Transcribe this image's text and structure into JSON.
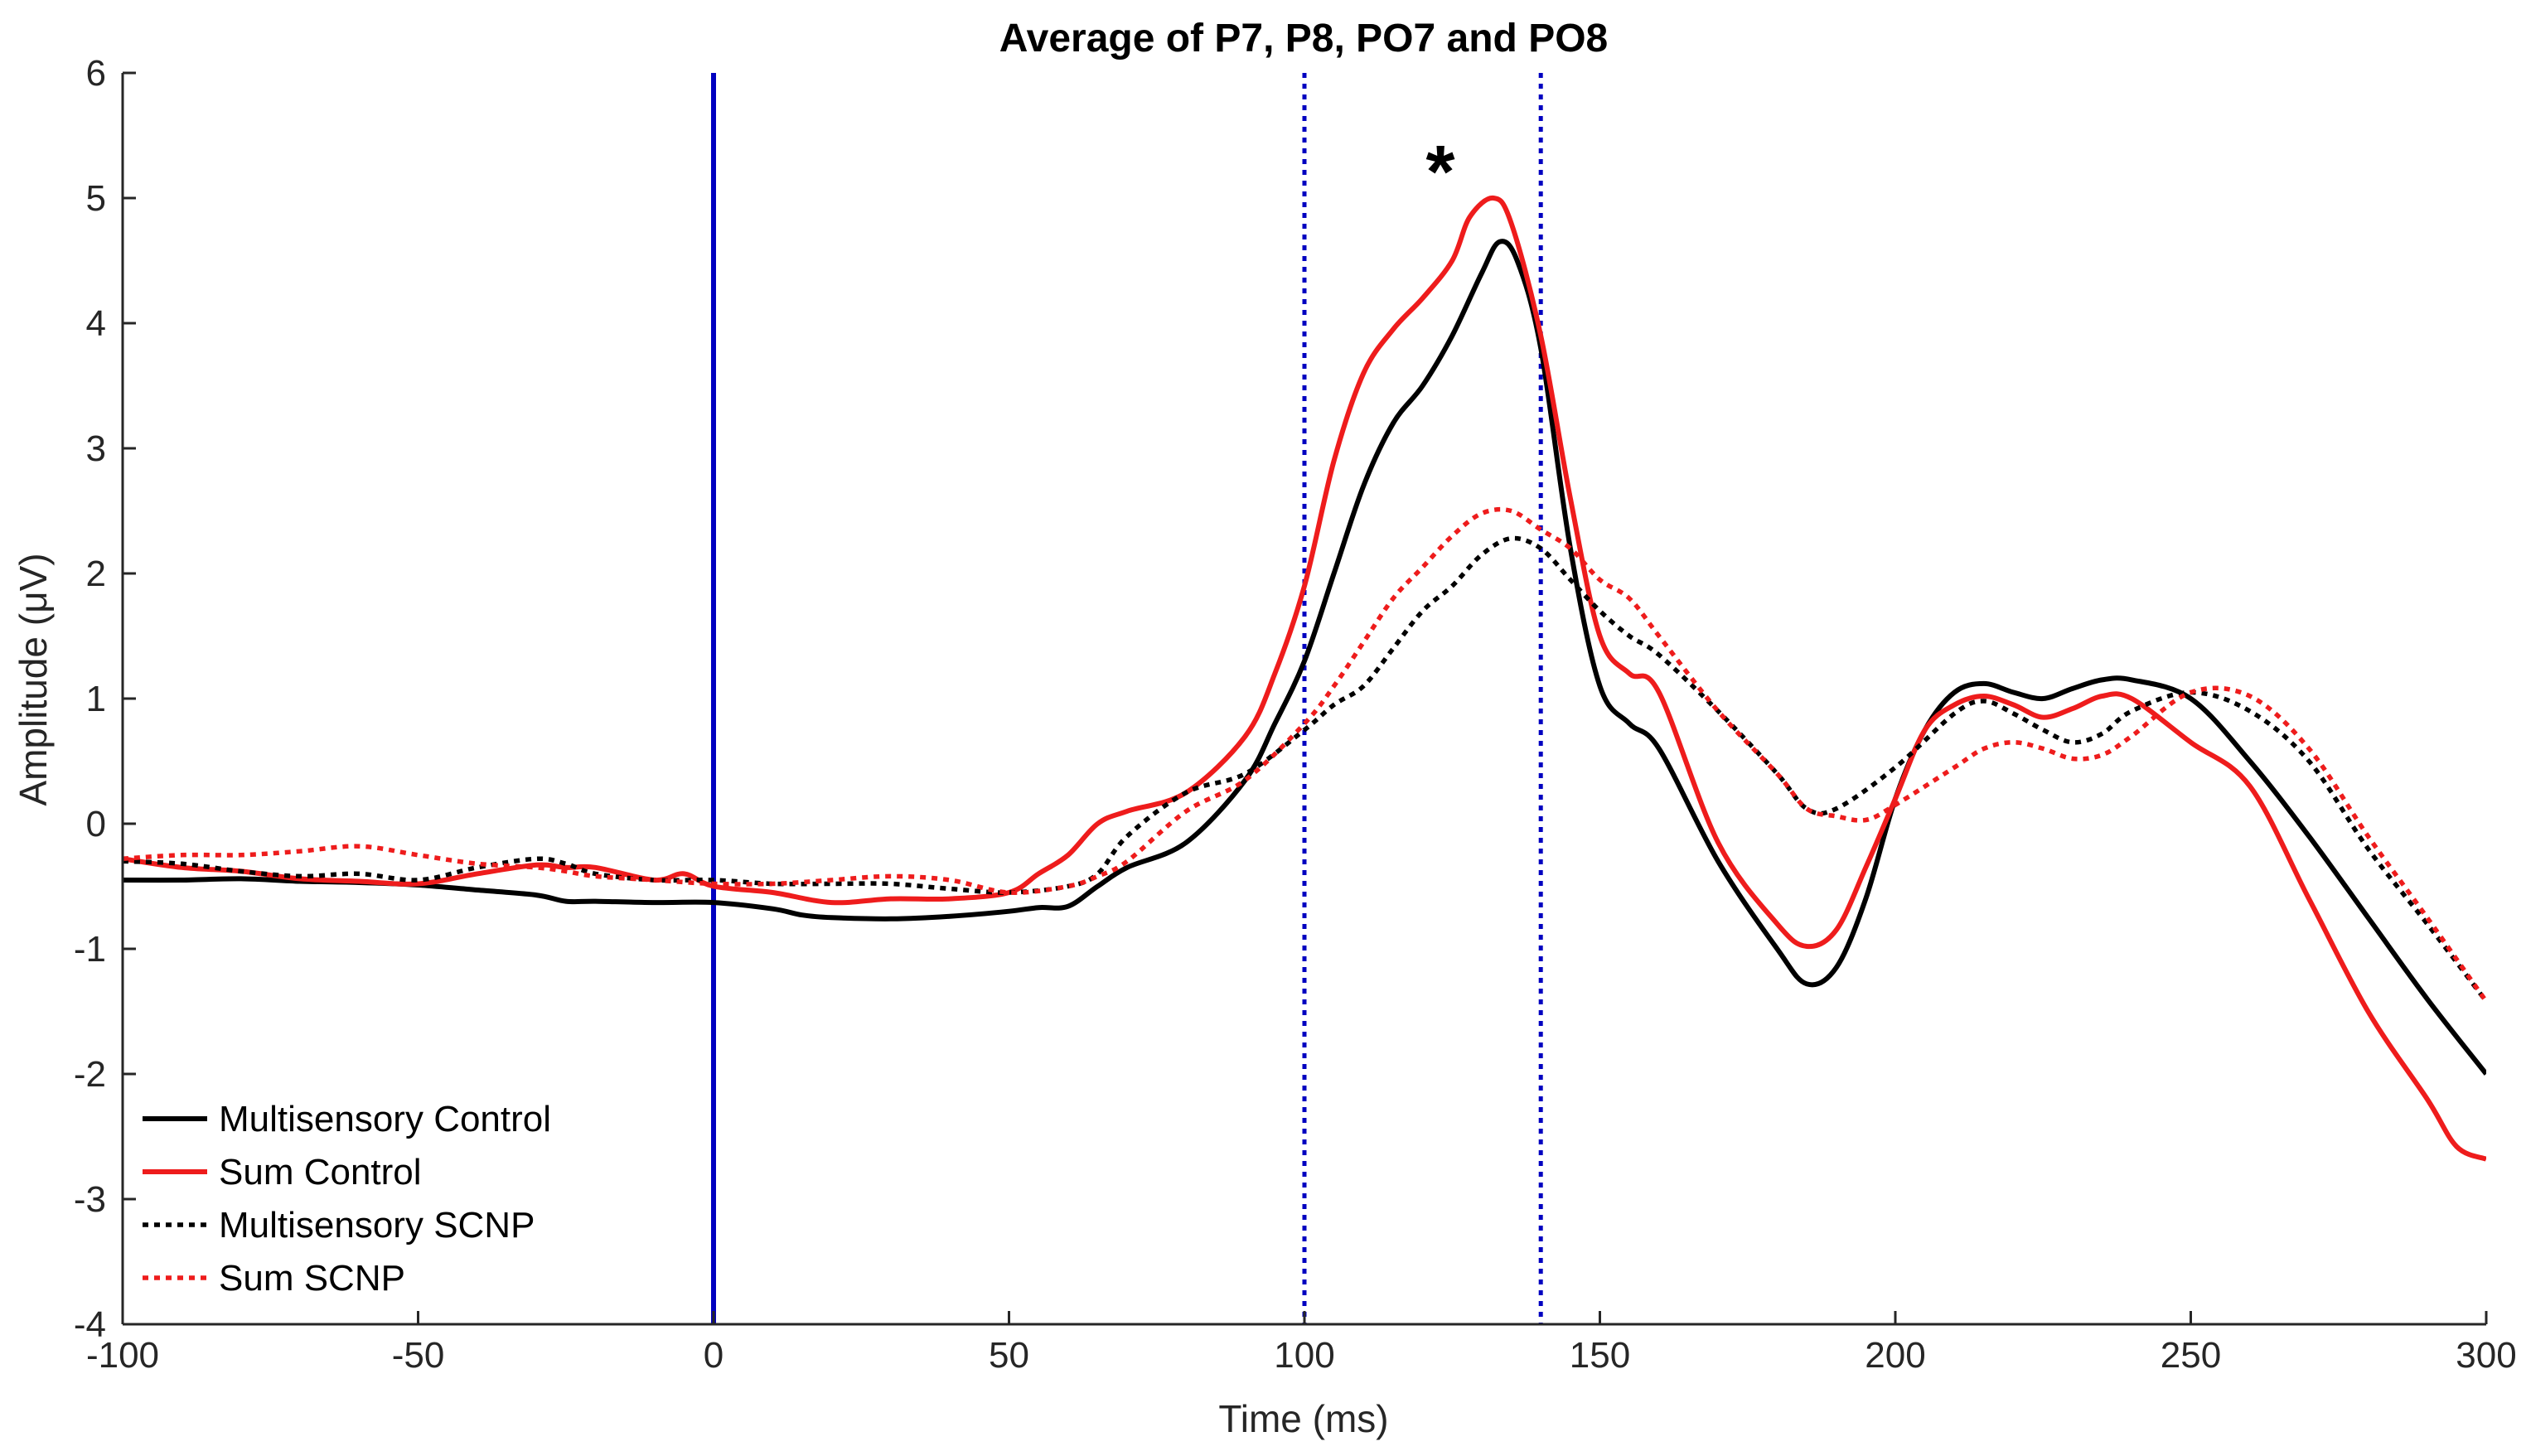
{
  "chart_data": {
    "type": "line",
    "title": "Average of P7, P8, PO7 and PO8",
    "xlabel": "Time (ms)",
    "ylabel": "Amplitude (μV)",
    "xlim": [
      -100,
      300
    ],
    "ylim": [
      -4,
      6
    ],
    "xticks": [
      -100,
      -50,
      0,
      50,
      100,
      150,
      200,
      250,
      300
    ],
    "yticks": [
      -4,
      -3,
      -2,
      -1,
      0,
      1,
      2,
      3,
      4,
      5,
      6
    ],
    "legend_position": "bottom-left",
    "annotations": [
      {
        "text": "*",
        "x": 123,
        "y": 5.35
      }
    ],
    "vlines": [
      {
        "name": "stimulus-onset",
        "x": 0,
        "color": "#0000c0",
        "style": "solid"
      },
      {
        "name": "window-start",
        "x": 100,
        "color": "#0000c0",
        "style": "dotted"
      },
      {
        "name": "window-end",
        "x": 140,
        "color": "#0000c0",
        "style": "dotted"
      }
    ],
    "series": [
      {
        "name": "Multisensory Control",
        "color": "#000000",
        "style": "solid",
        "x": [
          -100,
          -90,
          -80,
          -70,
          -60,
          -50,
          -40,
          -30,
          -25,
          -20,
          -10,
          0,
          10,
          15,
          20,
          30,
          40,
          50,
          55,
          60,
          65,
          70,
          80,
          90,
          95,
          100,
          105,
          110,
          115,
          120,
          125,
          130,
          133,
          136,
          140,
          145,
          150,
          155,
          160,
          170,
          180,
          185,
          190,
          195,
          200,
          205,
          210,
          215,
          220,
          225,
          230,
          235,
          240,
          250,
          260,
          270,
          280,
          290,
          300
        ],
        "y": [
          -0.45,
          -0.45,
          -0.44,
          -0.46,
          -0.47,
          -0.49,
          -0.53,
          -0.57,
          -0.62,
          -0.62,
          -0.63,
          -0.63,
          -0.68,
          -0.73,
          -0.75,
          -0.76,
          -0.74,
          -0.7,
          -0.67,
          -0.66,
          -0.5,
          -0.35,
          -0.15,
          0.35,
          0.8,
          1.3,
          2.0,
          2.7,
          3.2,
          3.5,
          3.9,
          4.4,
          4.65,
          4.5,
          3.8,
          2.2,
          1.1,
          0.8,
          0.6,
          -0.3,
          -1.0,
          -1.28,
          -1.15,
          -0.6,
          0.2,
          0.75,
          1.05,
          1.12,
          1.05,
          1.0,
          1.08,
          1.15,
          1.15,
          1.0,
          0.5,
          -0.1,
          -0.75,
          -1.4,
          -2.0
        ]
      },
      {
        "name": "Sum Control",
        "color": "#ee1c1c",
        "style": "solid",
        "x": [
          -100,
          -90,
          -80,
          -70,
          -60,
          -50,
          -40,
          -30,
          -25,
          -20,
          -10,
          -5,
          0,
          10,
          20,
          30,
          40,
          50,
          55,
          60,
          65,
          70,
          80,
          90,
          95,
          100,
          105,
          110,
          115,
          120,
          125,
          128,
          132,
          135,
          140,
          145,
          150,
          155,
          160,
          170,
          180,
          185,
          190,
          195,
          200,
          205,
          210,
          215,
          220,
          225,
          230,
          235,
          240,
          250,
          260,
          270,
          280,
          290,
          295,
          300
        ],
        "y": [
          -0.28,
          -0.35,
          -0.38,
          -0.44,
          -0.46,
          -0.48,
          -0.4,
          -0.33,
          -0.35,
          -0.35,
          -0.45,
          -0.4,
          -0.5,
          -0.55,
          -0.63,
          -0.6,
          -0.6,
          -0.55,
          -0.4,
          -0.25,
          0.0,
          0.1,
          0.25,
          0.7,
          1.2,
          1.9,
          2.9,
          3.6,
          3.95,
          4.2,
          4.5,
          4.85,
          5.0,
          4.8,
          3.9,
          2.6,
          1.5,
          1.2,
          1.05,
          -0.15,
          -0.8,
          -0.98,
          -0.85,
          -0.35,
          0.2,
          0.75,
          0.95,
          1.02,
          0.95,
          0.85,
          0.92,
          1.02,
          1.0,
          0.65,
          0.3,
          -0.6,
          -1.5,
          -2.2,
          -2.58,
          -2.68
        ]
      },
      {
        "name": "Multisensory SCNP",
        "color": "#000000",
        "style": "dotted",
        "x": [
          -100,
          -90,
          -80,
          -70,
          -60,
          -50,
          -40,
          -30,
          -25,
          -20,
          -10,
          0,
          10,
          20,
          30,
          40,
          50,
          60,
          65,
          70,
          80,
          90,
          100,
          105,
          110,
          115,
          120,
          125,
          130,
          135,
          140,
          145,
          150,
          155,
          160,
          170,
          180,
          185,
          190,
          200,
          210,
          215,
          220,
          225,
          230,
          235,
          240,
          250,
          260,
          270,
          280,
          290,
          300
        ],
        "y": [
          -0.3,
          -0.32,
          -0.38,
          -0.42,
          -0.4,
          -0.45,
          -0.35,
          -0.28,
          -0.32,
          -0.4,
          -0.45,
          -0.45,
          -0.48,
          -0.48,
          -0.48,
          -0.52,
          -0.55,
          -0.5,
          -0.4,
          -0.1,
          0.25,
          0.4,
          0.75,
          0.95,
          1.1,
          1.4,
          1.7,
          1.9,
          2.15,
          2.28,
          2.2,
          1.95,
          1.7,
          1.5,
          1.35,
          0.9,
          0.4,
          0.12,
          0.12,
          0.45,
          0.88,
          0.98,
          0.88,
          0.75,
          0.65,
          0.72,
          0.9,
          1.05,
          0.9,
          0.5,
          -0.2,
          -0.8,
          -1.42
        ]
      },
      {
        "name": "Sum SCNP",
        "color": "#ee1c1c",
        "style": "dotted",
        "x": [
          -100,
          -90,
          -80,
          -70,
          -60,
          -50,
          -40,
          -30,
          -25,
          -20,
          -10,
          0,
          10,
          20,
          30,
          40,
          50,
          60,
          65,
          70,
          80,
          90,
          100,
          105,
          110,
          115,
          120,
          125,
          130,
          135,
          140,
          145,
          150,
          155,
          160,
          170,
          180,
          185,
          190,
          195,
          200,
          210,
          215,
          220,
          225,
          230,
          235,
          240,
          250,
          260,
          270,
          280,
          290,
          300
        ],
        "y": [
          -0.28,
          -0.25,
          -0.25,
          -0.22,
          -0.18,
          -0.25,
          -0.32,
          -0.35,
          -0.38,
          -0.42,
          -0.45,
          -0.48,
          -0.48,
          -0.45,
          -0.42,
          -0.45,
          -0.55,
          -0.5,
          -0.42,
          -0.3,
          0.1,
          0.35,
          0.8,
          1.1,
          1.45,
          1.8,
          2.05,
          2.3,
          2.48,
          2.5,
          2.35,
          2.2,
          1.95,
          1.8,
          1.5,
          0.9,
          0.4,
          0.12,
          0.06,
          0.03,
          0.15,
          0.45,
          0.6,
          0.65,
          0.6,
          0.52,
          0.55,
          0.7,
          1.05,
          1.02,
          0.6,
          -0.1,
          -0.75,
          -1.42
        ]
      }
    ]
  }
}
